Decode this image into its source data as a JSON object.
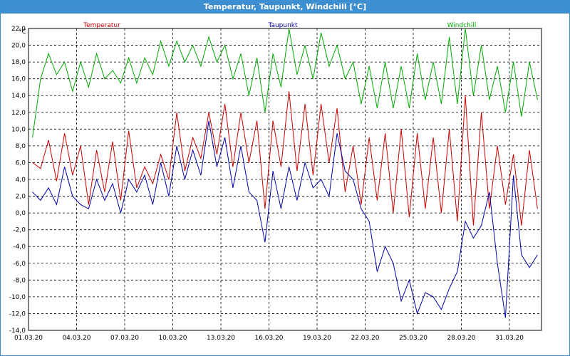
{
  "window": {
    "title": "Temperatur, Taupunkt, Windchill [°C]"
  },
  "chart_data": {
    "type": "line",
    "title": "Temperatur, Taupunkt, Windchill [°C]",
    "ylabel": "°C",
    "ylim": [
      -14,
      22
    ],
    "yticks": [
      "22,0",
      "20,0",
      "18,0",
      "16,0",
      "14,0",
      "12,0",
      "10,0",
      "8,0",
      "6,0",
      "4,0",
      "2,0",
      "0,0",
      "-2,0",
      "-4,0",
      "-6,0",
      "-8,0",
      "-10,0",
      "-12,0",
      "-14,0"
    ],
    "x_range": [
      "01.03.20",
      "02.04.20"
    ],
    "xticks": [
      "01.03.20",
      "04.03.20",
      "07.03.20",
      "10.03.20",
      "13.03.20",
      "16.03.20",
      "19.03.20",
      "22.03.20",
      "25.03.20",
      "28.03.20",
      "31.03.20"
    ],
    "grid": true,
    "legend": "top",
    "series": [
      {
        "name": "Temperatur",
        "color": "#cc0000",
        "x": [
          "01.03.20",
          "01.03.20",
          "02.03.20",
          "02.03.20",
          "03.03.20",
          "03.03.20",
          "04.03.20",
          "04.03.20",
          "05.03.20",
          "05.03.20",
          "06.03.20",
          "06.03.20",
          "07.03.20",
          "07.03.20",
          "08.03.20",
          "08.03.20",
          "09.03.20",
          "09.03.20",
          "10.03.20",
          "10.03.20",
          "11.03.20",
          "11.03.20",
          "12.03.20",
          "12.03.20",
          "13.03.20",
          "13.03.20",
          "14.03.20",
          "14.03.20",
          "15.03.20",
          "15.03.20",
          "16.03.20",
          "16.03.20",
          "17.03.20",
          "17.03.20",
          "18.03.20",
          "18.03.20",
          "19.03.20",
          "19.03.20",
          "20.03.20",
          "20.03.20",
          "21.03.20",
          "21.03.20",
          "22.03.20",
          "22.03.20",
          "23.03.20",
          "23.03.20",
          "24.03.20",
          "24.03.20",
          "25.03.20",
          "25.03.20",
          "26.03.20",
          "26.03.20",
          "27.03.20",
          "27.03.20",
          "28.03.20",
          "28.03.20",
          "29.03.20",
          "29.03.20",
          "30.03.20",
          "30.03.20",
          "31.03.20",
          "31.03.20",
          "01.04.20",
          "01.04.20"
        ],
        "values": [
          6.0,
          5.3,
          8.7,
          3.8,
          9.5,
          4.5,
          8.0,
          1.0,
          7.5,
          2.5,
          8.5,
          1.5,
          9.8,
          3.0,
          5.5,
          3.5,
          7.0,
          4.0,
          12.0,
          5.0,
          9.0,
          6.5,
          12.0,
          7.0,
          13.0,
          5.5,
          12.0,
          6.0,
          11.0,
          0.5,
          11.0,
          5.5,
          14.5,
          5.0,
          13.0,
          4.5,
          13.0,
          6.0,
          12.5,
          2.5,
          8.0,
          1.0,
          9.0,
          1.5,
          9.5,
          0.0,
          10.0,
          -0.5,
          9.5,
          0.5,
          9.0,
          0.0,
          10.0,
          -1.0,
          14.0,
          -1.5,
          12.0,
          0.5,
          8.0,
          1.0,
          7.0,
          -1.5,
          7.5,
          0.5
        ]
      },
      {
        "name": "Taupunkt",
        "color": "#0000aa",
        "x": [
          "01.03.20",
          "01.03.20",
          "02.03.20",
          "02.03.20",
          "03.03.20",
          "03.03.20",
          "04.03.20",
          "04.03.20",
          "05.03.20",
          "05.03.20",
          "06.03.20",
          "06.03.20",
          "07.03.20",
          "07.03.20",
          "08.03.20",
          "08.03.20",
          "09.03.20",
          "09.03.20",
          "10.03.20",
          "10.03.20",
          "11.03.20",
          "11.03.20",
          "12.03.20",
          "12.03.20",
          "13.03.20",
          "13.03.20",
          "14.03.20",
          "14.03.20",
          "15.03.20",
          "15.03.20",
          "16.03.20",
          "16.03.20",
          "17.03.20",
          "17.03.20",
          "18.03.20",
          "18.03.20",
          "19.03.20",
          "19.03.20",
          "20.03.20",
          "20.03.20",
          "21.03.20",
          "21.03.20",
          "22.03.20",
          "22.03.20",
          "23.03.20",
          "23.03.20",
          "24.03.20",
          "24.03.20",
          "25.03.20",
          "25.03.20",
          "26.03.20",
          "26.03.20",
          "27.03.20",
          "27.03.20",
          "28.03.20",
          "28.03.20",
          "29.03.20",
          "29.03.20",
          "30.03.20",
          "30.03.20",
          "31.03.20",
          "31.03.20",
          "01.04.20",
          "01.04.20"
        ],
        "values": [
          2.5,
          1.5,
          3.0,
          1.0,
          5.5,
          2.0,
          1.0,
          0.5,
          4.0,
          1.5,
          3.5,
          0.0,
          4.0,
          2.5,
          4.5,
          1.0,
          6.0,
          2.0,
          8.0,
          4.0,
          7.5,
          4.5,
          11.0,
          5.5,
          9.0,
          3.0,
          8.0,
          2.5,
          1.5,
          -3.5,
          5.0,
          0.5,
          5.5,
          1.5,
          6.0,
          3.0,
          4.0,
          2.0,
          9.5,
          5.0,
          4.0,
          0.5,
          -1.0,
          -7.0,
          -4.0,
          -6.0,
          -10.5,
          -8.0,
          -12.0,
          -9.5,
          -10.0,
          -11.5,
          -9.0,
          -7.0,
          -1.0,
          -3.0,
          -1.5,
          2.5,
          -6.0,
          -12.5,
          4.5,
          -5.0,
          -6.5,
          -5.0
        ]
      },
      {
        "name": "Windchill",
        "color": "#00aa00",
        "x": [
          "01.03.20",
          "01.03.20",
          "02.03.20",
          "02.03.20",
          "03.03.20",
          "03.03.20",
          "04.03.20",
          "04.03.20",
          "05.03.20",
          "05.03.20",
          "06.03.20",
          "06.03.20",
          "07.03.20",
          "07.03.20",
          "08.03.20",
          "08.03.20",
          "09.03.20",
          "09.03.20",
          "10.03.20",
          "10.03.20",
          "11.03.20",
          "11.03.20",
          "12.03.20",
          "12.03.20",
          "13.03.20",
          "13.03.20",
          "14.03.20",
          "14.03.20",
          "15.03.20",
          "15.03.20",
          "16.03.20",
          "16.03.20",
          "17.03.20",
          "17.03.20",
          "18.03.20",
          "18.03.20",
          "19.03.20",
          "19.03.20",
          "20.03.20",
          "20.03.20",
          "21.03.20",
          "21.03.20",
          "22.03.20",
          "22.03.20",
          "23.03.20",
          "23.03.20",
          "24.03.20",
          "24.03.20",
          "25.03.20",
          "25.03.20",
          "26.03.20",
          "26.03.20",
          "27.03.20",
          "27.03.20",
          "28.03.20",
          "28.03.20",
          "29.03.20",
          "29.03.20",
          "30.03.20",
          "30.03.20",
          "31.03.20",
          "31.03.20",
          "01.04.20",
          "01.04.20"
        ],
        "values": [
          9.0,
          16.0,
          19.0,
          16.5,
          18.0,
          14.5,
          18.0,
          15.0,
          19.0,
          16.0,
          17.0,
          15.5,
          18.5,
          15.5,
          18.5,
          16.5,
          20.5,
          17.5,
          20.5,
          18.0,
          20.0,
          17.5,
          21.0,
          18.0,
          20.0,
          16.0,
          19.0,
          14.0,
          18.5,
          12.0,
          19.0,
          15.0,
          22.0,
          16.5,
          20.0,
          16.0,
          21.5,
          17.5,
          20.0,
          16.0,
          18.0,
          13.0,
          17.5,
          12.5,
          18.0,
          12.5,
          17.5,
          12.5,
          19.0,
          13.5,
          18.0,
          13.0,
          21.0,
          13.0,
          22.0,
          14.0,
          20.0,
          13.5,
          17.5,
          12.0,
          18.0,
          11.5,
          18.0,
          13.5
        ]
      }
    ]
  }
}
